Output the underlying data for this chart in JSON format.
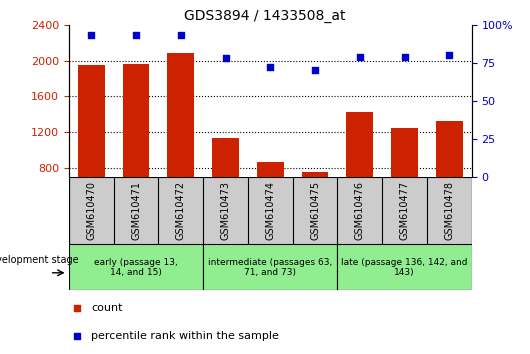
{
  "title": "GDS3894 / 1433508_at",
  "samples": [
    "GSM610470",
    "GSM610471",
    "GSM610472",
    "GSM610473",
    "GSM610474",
    "GSM610475",
    "GSM610476",
    "GSM610477",
    "GSM610478"
  ],
  "counts": [
    1950,
    1960,
    2080,
    1130,
    870,
    760,
    1430,
    1250,
    1320
  ],
  "percentile_values": [
    93,
    93,
    93,
    78,
    72,
    70,
    79,
    79,
    80
  ],
  "ylim_left": [
    700,
    2400
  ],
  "ylim_right": [
    0,
    100
  ],
  "yticks_left": [
    800,
    1200,
    1600,
    2000,
    2400
  ],
  "yticks_right": [
    0,
    25,
    50,
    75,
    100
  ],
  "bar_color": "#cc2200",
  "dot_color": "#0000cc",
  "stage_color": "#90ee90",
  "xtick_bg": "#cccccc",
  "stage_groups": [
    {
      "label": "early (passage 13,\n14, and 15)",
      "indices": [
        0,
        1,
        2
      ]
    },
    {
      "label": "intermediate (passages 63,\n71, and 73)",
      "indices": [
        3,
        4,
        5
      ]
    },
    {
      "label": "late (passage 136, 142, and\n143)",
      "indices": [
        6,
        7,
        8
      ]
    }
  ],
  "development_stage_label": "development stage",
  "legend_count_label": "count",
  "legend_percentile_label": "percentile rank within the sample",
  "tick_color_left": "#cc2200",
  "tick_color_right": "#0000cc"
}
